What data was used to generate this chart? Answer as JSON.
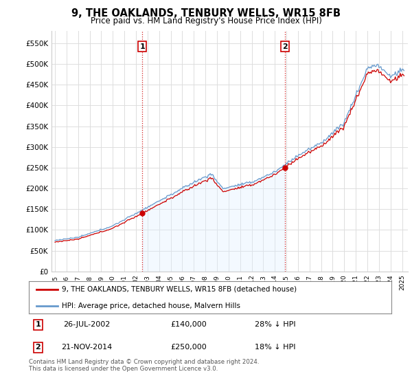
{
  "title": "9, THE OAKLANDS, TENBURY WELLS, WR15 8FB",
  "subtitle": "Price paid vs. HM Land Registry's House Price Index (HPI)",
  "ylim": [
    0,
    580000
  ],
  "yticks": [
    0,
    50000,
    100000,
    150000,
    200000,
    250000,
    300000,
    350000,
    400000,
    450000,
    500000,
    550000
  ],
  "ytick_labels": [
    "£0",
    "£50K",
    "£100K",
    "£150K",
    "£200K",
    "£250K",
    "£300K",
    "£350K",
    "£400K",
    "£450K",
    "£500K",
    "£550K"
  ],
  "xlim_start": 1994.7,
  "xlim_end": 2025.5,
  "transaction1": {
    "date": 2002.55,
    "price": 140000,
    "label": "1",
    "text": "26-JUL-2002",
    "amount": "£140,000",
    "pct": "28% ↓ HPI"
  },
  "transaction2": {
    "date": 2014.89,
    "price": 250000,
    "label": "2",
    "text": "21-NOV-2014",
    "amount": "£250,000",
    "pct": "18% ↓ HPI"
  },
  "legend_house": "9, THE OAKLANDS, TENBURY WELLS, WR15 8FB (detached house)",
  "legend_hpi": "HPI: Average price, detached house, Malvern Hills",
  "footnote": "Contains HM Land Registry data © Crown copyright and database right 2024.\nThis data is licensed under the Open Government Licence v3.0.",
  "house_color": "#cc0000",
  "hpi_color": "#6699cc",
  "fill_color": "#ddeeff",
  "vline_color": "#cc0000",
  "background_color": "#ffffff",
  "grid_color": "#dddddd"
}
